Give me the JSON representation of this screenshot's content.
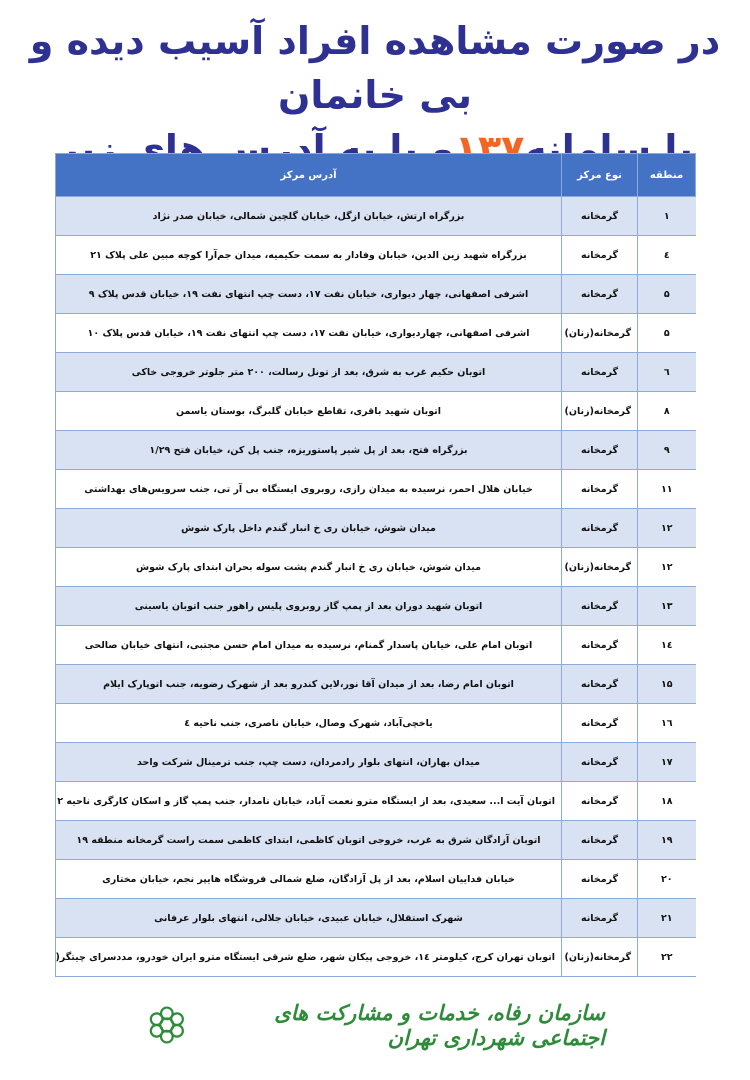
{
  "title": {
    "line1": "در صورت مشاهده افراد آسیب دیده و بی خانمان",
    "line2_before": "با سامانه",
    "line2_number": "۱۳۷",
    "line2_after": "و یا به آدرس های زیر مراجعه نمایید."
  },
  "colors": {
    "title": "#2e3192",
    "number": "#f26522",
    "header": "#4472c4",
    "row_alt": "#d9e2f3",
    "logo": "#2e8b3a"
  },
  "table": {
    "headers": [
      "منطقه",
      "نوع مرکز",
      "آدرس مرکز"
    ],
    "rows": [
      [
        "۱",
        "گرمخانه",
        "بزرگراه ارتش، خیابان ازگل، خیابان گلچین شمالی، خیابان صدر نژاد"
      ],
      [
        "٤",
        "گرمخانه",
        "بزرگراه شهید زین الدین، خیابان وفادار به سمت حکیمیه، میدان جم‌آرا کوچه مبین علی پلاک ۲۱"
      ],
      [
        "۵",
        "گرمخانه",
        "اشرفی اصفهانی، چهار دیواری، خیابان نفت ۱۷، دست چپ انتهای نفت ۱۹، خیابان قدس پلاک ۹"
      ],
      [
        "۵",
        "گرمخانه(زنان)",
        "اشرفی اصفهانی، چهاردیواری، خیابان نفت ۱۷، دست چپ انتهای نفت ۱۹، خیابان قدس پلاک ۱۰"
      ],
      [
        "٦",
        "گرمخانه",
        "اتوبان حکیم غرب به شرق، بعد از تونل رسالت، ۲۰۰ متر جلوتر خروجی خاکی"
      ],
      [
        "۸",
        "گرمخانه(زنان)",
        "اتوبان شهید باقری، تقاطع خیابان گلبرگ، بوستان یاسمن"
      ],
      [
        "۹",
        "گرمخانه",
        "بزرگراه فتح، بعد از پل شیر پاستوریزه، جنب پل کن، خیابان فتح ۱/۲۹"
      ],
      [
        "۱۱",
        "گرمخانه",
        "خیابان هلال احمر، نرسیده به میدان رازی، روبروی ایستگاه بی آر تی، جنب سرویس‌های بهداشتی"
      ],
      [
        "۱۲",
        "گرمخانه",
        "میدان شوش، خیابان ری خ انبار گندم داخل پارک شوش"
      ],
      [
        "۱۲",
        "گرمخانه(زنان)",
        "میدان شوش، خیابان ری خ انبار گندم پشت سوله بحران ابتدای پارک شوش"
      ],
      [
        "۱۳",
        "گرمخانه",
        "اتوبان شهید دوران بعد از پمپ گاز روبروی پلیس راهور جنب اتوبان یاسینی"
      ],
      [
        "۱٤",
        "گرمخانه",
        "اتوبان امام علی، خیابان پاسدار گمنام، نرسیده به میدان امام حسن مجتبی، انتهای خیابان صالحی"
      ],
      [
        "۱۵",
        "گرمخانه",
        "اتوبان امام رضا، بعد از میدان آقا نور،لاین کندرو بعد از شهرک رضویه، جنب اتوپارک ایلام"
      ],
      [
        "۱٦",
        "گرمخانه",
        "یاخچی‌آباد، شهرک وصال، خیابان ناصری، جنب ناحیه ٤"
      ],
      [
        "۱۷",
        "گرمخانه",
        "میدان بهاران، انتهای بلوار رادمردان، دست چپ، جنب ترمینال شرکت واحد"
      ],
      [
        "۱۸",
        "گرمخانه",
        "اتوبان آیت ا... سعیدی، بعد از ایستگاه مترو نعمت آباد، خیابان نامدار، جنب پمپ گاز و اسکان کارگری ناحیه ۲"
      ],
      [
        "۱۹",
        "گرمخانه",
        "اتوبان آزادگان شرق به غرب، خروجی اتوبان کاظمی، ابتدای کاظمی سمت راست گرمخانه منطقه ۱۹"
      ],
      [
        "۲۰",
        "گرمخانه",
        "خیابان فداییان اسلام، بعد از پل آزادگان، ضلع شمالی فروشگاه هایپر نجم، خیابان مختاری"
      ],
      [
        "۲۱",
        "گرمخانه",
        "شهرک استقلال، خیابان عبیدی، خیابان جلالی، انتهای بلوار عرفانی"
      ],
      [
        "۲۲",
        "گرمخانه(زنان)",
        "اتوبان تهران کرج، کیلومتر ۱٤، خروجی پیکان شهر، ضلع شرقی ایستگاه مترو ایران خودرو، مددسرای چیتگر(بانوان)"
      ]
    ]
  },
  "footer": {
    "organization": "سازمان رفاه، خدمات و مشارکت های اجتماعی شهرداری تهران",
    "logo_icon": "tehran-municipality-flower-logo"
  }
}
